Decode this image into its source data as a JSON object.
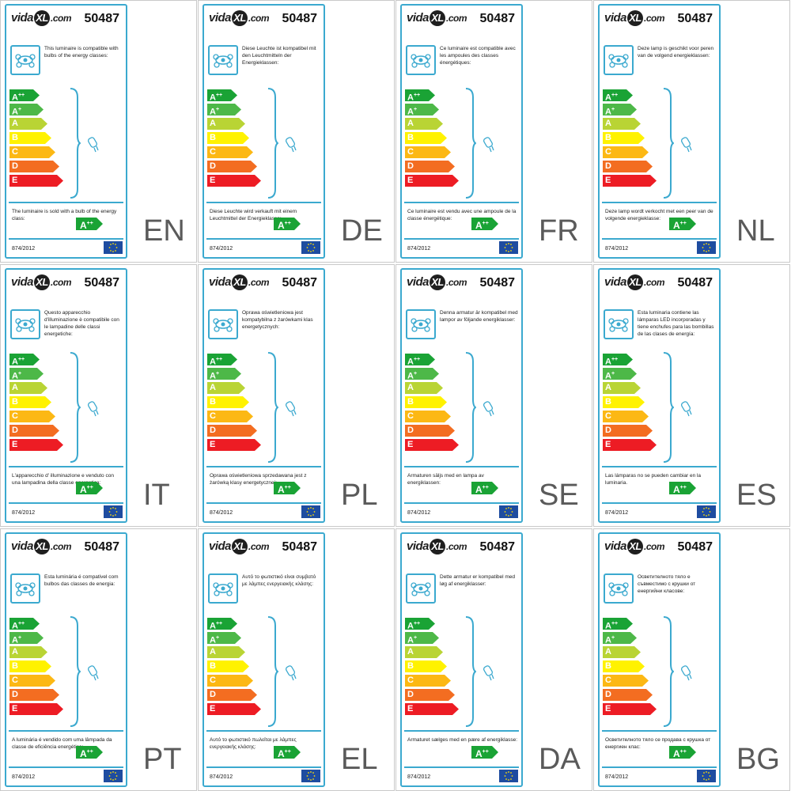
{
  "brand": {
    "name": "vida",
    "mark": "XL",
    "suffix": ".com"
  },
  "model": "50487",
  "energy_classes": [
    "A++",
    "A+",
    "A",
    "B",
    "C",
    "D",
    "E"
  ],
  "class_colors": [
    "#1aa335",
    "#4db848",
    "#b9d434",
    "#fff200",
    "#fcb814",
    "#f36d21",
    "#ed1c24"
  ],
  "rating": "A++",
  "regulation": "874/2012",
  "labels": [
    {
      "lang": "EN",
      "compat": "This luminaire is compatible with bulbs of the energy classes:",
      "sold": "The luminaire is sold with a bulb of the energy class:"
    },
    {
      "lang": "DE",
      "compat": "Diese Leuchte ist kompatibel mit den Leuchtmitteln der Energieklassen:",
      "sold": "Diese Leuchte wird verkauft mit einem Leuchtmittel der Energieklasse:"
    },
    {
      "lang": "FR",
      "compat": "Ce luminaire est compatible avec les ampoules des classes énergétiques:",
      "sold": "Ce luminaire est vendu avec une ampoule de la classe énergétique:"
    },
    {
      "lang": "NL",
      "compat": "Deze lamp is geschikt voor peren van de volgend energieklassen:",
      "sold": "Deze lamp wordt verkocht met een peer van de volgende energieklasse:"
    },
    {
      "lang": "IT",
      "compat": "Questo apparecchio d'illuminazione è compatibile con le lampadine delle classi energetiche:",
      "sold": "L'apparecchio d' illuminazione e venduto con una lampadina della classe energetica:"
    },
    {
      "lang": "PL",
      "compat": "Oprawa oświetleniowa jest kompatybilna z żarówkami klas energetycznych:",
      "sold": "Oprawa oświetleniowa sprzedawana jest z żarówką klasy energetycznej:"
    },
    {
      "lang": "SE",
      "compat": "Denna armatur är kompatibel med lampor av följande energiklasser:",
      "sold": "Armaturen säljs med en lampa av energiklassen:"
    },
    {
      "lang": "ES",
      "compat": "Esta luminaria contiene las lámparas LED incorporadas y tiene enchufes para las bombillas de las clases de energía:",
      "sold": "Las lámparas no se pueden cambiar en la luminaria."
    },
    {
      "lang": "PT",
      "compat": "Esta luminária é compativel com bulbos das classes de energia:",
      "sold": "A luminária é vendido com uma lâmpada da classe de eficiência energética:"
    },
    {
      "lang": "EL",
      "compat": "Αυτό το φωτιστικό είναι συμβατό με λάμπες ενεργειακής κλάσης:",
      "sold": "Αυτό το φωτιστικό πωλείται με λάμπες ενεργειακής κλάσης:"
    },
    {
      "lang": "DA",
      "compat": "Dette armatur er kompatibel med løg af energiklasser:",
      "sold": "Armaturet sælges med en pære af energiklasse:"
    },
    {
      "lang": "BG",
      "compat": "Осветителното тяло е съвместимо с крушки от енергийни класове:",
      "sold": "Осветителното тяло се продава с крушка от енергиен клас:"
    }
  ]
}
